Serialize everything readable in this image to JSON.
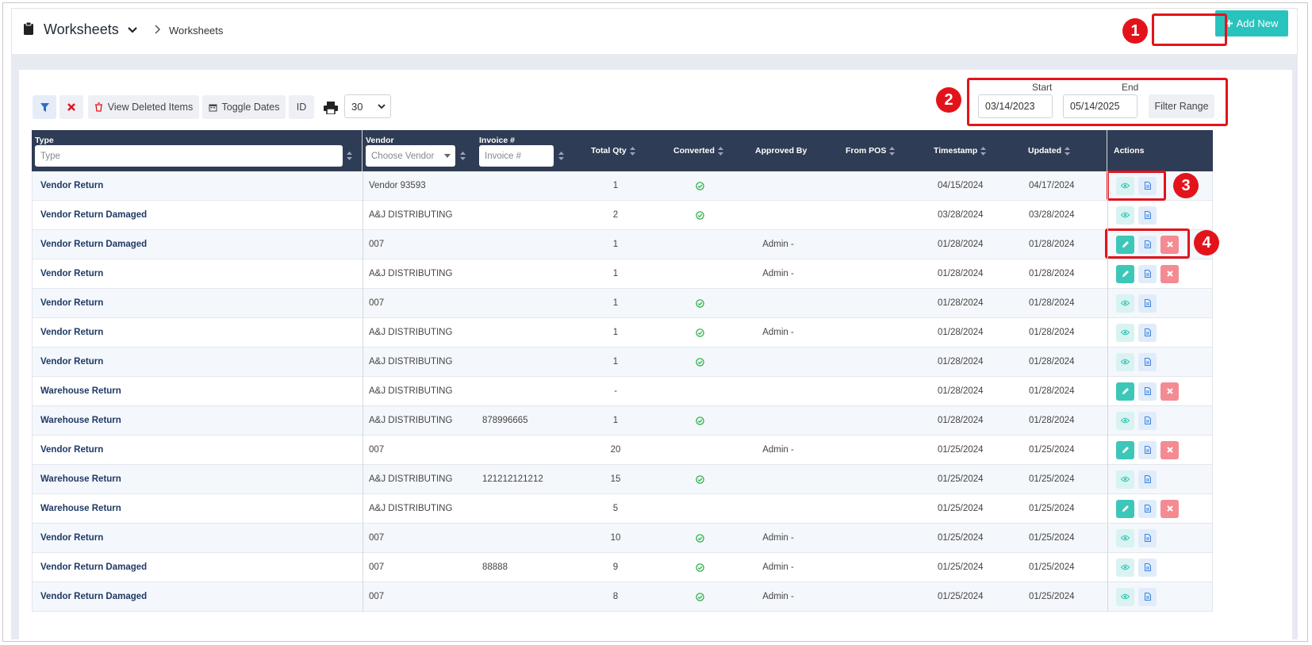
{
  "header": {
    "title": "Worksheets",
    "breadcrumb": "Worksheets",
    "add_new_label": "Add New"
  },
  "annotations": [
    "1",
    "2",
    "3",
    "4"
  ],
  "toolbar": {
    "view_deleted_label": "View Deleted Items",
    "toggle_dates_label": "Toggle Dates",
    "id_label": "ID",
    "page_size_value": "30"
  },
  "date_range": {
    "start_label": "Start",
    "end_label": "End",
    "start_value": "03/14/2023",
    "end_value": "05/14/2025",
    "filter_label": "Filter Range"
  },
  "table": {
    "columns": {
      "type": "Type",
      "vendor": "Vendor",
      "invoice": "Invoice #",
      "total_qty": "Total Qty",
      "converted": "Converted",
      "approved_by": "Approved By",
      "from_pos": "From POS",
      "timestamp": "Timestamp",
      "updated": "Updated",
      "actions": "Actions"
    },
    "filters": {
      "type_placeholder": "Type",
      "vendor_placeholder": "Choose Vendor",
      "invoice_placeholder": "Invoice #"
    },
    "rows": [
      {
        "type": "Vendor Return",
        "vendor": "Vendor 93593",
        "invoice": "",
        "qty": "1",
        "converted": true,
        "approved_by": "",
        "timestamp": "04/15/2024",
        "updated": "04/17/2024",
        "editable": false
      },
      {
        "type": "Vendor Return Damaged",
        "vendor": "A&J DISTRIBUTING",
        "invoice": "",
        "qty": "2",
        "converted": true,
        "approved_by": "",
        "timestamp": "03/28/2024",
        "updated": "03/28/2024",
        "editable": false
      },
      {
        "type": "Vendor Return Damaged",
        "vendor": "007",
        "invoice": "",
        "qty": "1",
        "converted": false,
        "approved_by": "Admin -",
        "timestamp": "01/28/2024",
        "updated": "01/28/2024",
        "editable": true
      },
      {
        "type": "Vendor Return",
        "vendor": "A&J DISTRIBUTING",
        "invoice": "",
        "qty": "1",
        "converted": false,
        "approved_by": "Admin -",
        "timestamp": "01/28/2024",
        "updated": "01/28/2024",
        "editable": true
      },
      {
        "type": "Vendor Return",
        "vendor": "007",
        "invoice": "",
        "qty": "1",
        "converted": true,
        "approved_by": "",
        "timestamp": "01/28/2024",
        "updated": "01/28/2024",
        "editable": false
      },
      {
        "type": "Vendor Return",
        "vendor": "A&J DISTRIBUTING",
        "invoice": "",
        "qty": "1",
        "converted": true,
        "approved_by": "Admin -",
        "timestamp": "01/28/2024",
        "updated": "01/28/2024",
        "editable": false
      },
      {
        "type": "Vendor Return",
        "vendor": "A&J DISTRIBUTING",
        "invoice": "",
        "qty": "1",
        "converted": true,
        "approved_by": "",
        "timestamp": "01/28/2024",
        "updated": "01/28/2024",
        "editable": false
      },
      {
        "type": "Warehouse Return",
        "vendor": "A&J DISTRIBUTING",
        "invoice": "",
        "qty": "-",
        "converted": false,
        "approved_by": "",
        "timestamp": "01/28/2024",
        "updated": "01/28/2024",
        "editable": true
      },
      {
        "type": "Warehouse Return",
        "vendor": "A&J DISTRIBUTING",
        "invoice": "878996665",
        "qty": "1",
        "converted": true,
        "approved_by": "",
        "timestamp": "01/28/2024",
        "updated": "01/28/2024",
        "editable": false
      },
      {
        "type": "Vendor Return",
        "vendor": "007",
        "invoice": "",
        "qty": "20",
        "converted": false,
        "approved_by": "Admin -",
        "timestamp": "01/25/2024",
        "updated": "01/25/2024",
        "editable": true
      },
      {
        "type": "Warehouse Return",
        "vendor": "A&J DISTRIBUTING",
        "invoice": "121212121212",
        "qty": "15",
        "converted": true,
        "approved_by": "",
        "timestamp": "01/25/2024",
        "updated": "01/25/2024",
        "editable": false
      },
      {
        "type": "Warehouse Return",
        "vendor": "A&J DISTRIBUTING",
        "invoice": "",
        "qty": "5",
        "converted": false,
        "approved_by": "",
        "timestamp": "01/25/2024",
        "updated": "01/25/2024",
        "editable": true
      },
      {
        "type": "Vendor Return",
        "vendor": "007",
        "invoice": "",
        "qty": "10",
        "converted": true,
        "approved_by": "Admin -",
        "timestamp": "01/25/2024",
        "updated": "01/25/2024",
        "editable": false
      },
      {
        "type": "Vendor Return Damaged",
        "vendor": "007",
        "invoice": "88888",
        "qty": "9",
        "converted": true,
        "approved_by": "Admin -",
        "timestamp": "01/25/2024",
        "updated": "01/25/2024",
        "editable": false
      },
      {
        "type": "Vendor Return Damaged",
        "vendor": "007",
        "invoice": "",
        "qty": "8",
        "converted": true,
        "approved_by": "Admin -",
        "timestamp": "01/25/2024",
        "updated": "01/25/2024",
        "editable": false
      }
    ]
  },
  "colors": {
    "accent": "#29c3be",
    "header_bg": "#2f3c55",
    "annotation_red": "#e3131b",
    "link_blue": "#1f3a66",
    "check_green": "#2eb34a"
  },
  "icons": [
    "clipboard-icon",
    "chevron-down-icon",
    "chevron-right-icon",
    "plus-icon",
    "filter-icon",
    "close-icon",
    "trash-icon",
    "calendar-icon",
    "print-icon",
    "sort-icon",
    "check-circle-icon",
    "eye-icon",
    "document-icon",
    "pencil-icon",
    "delete-icon"
  ]
}
